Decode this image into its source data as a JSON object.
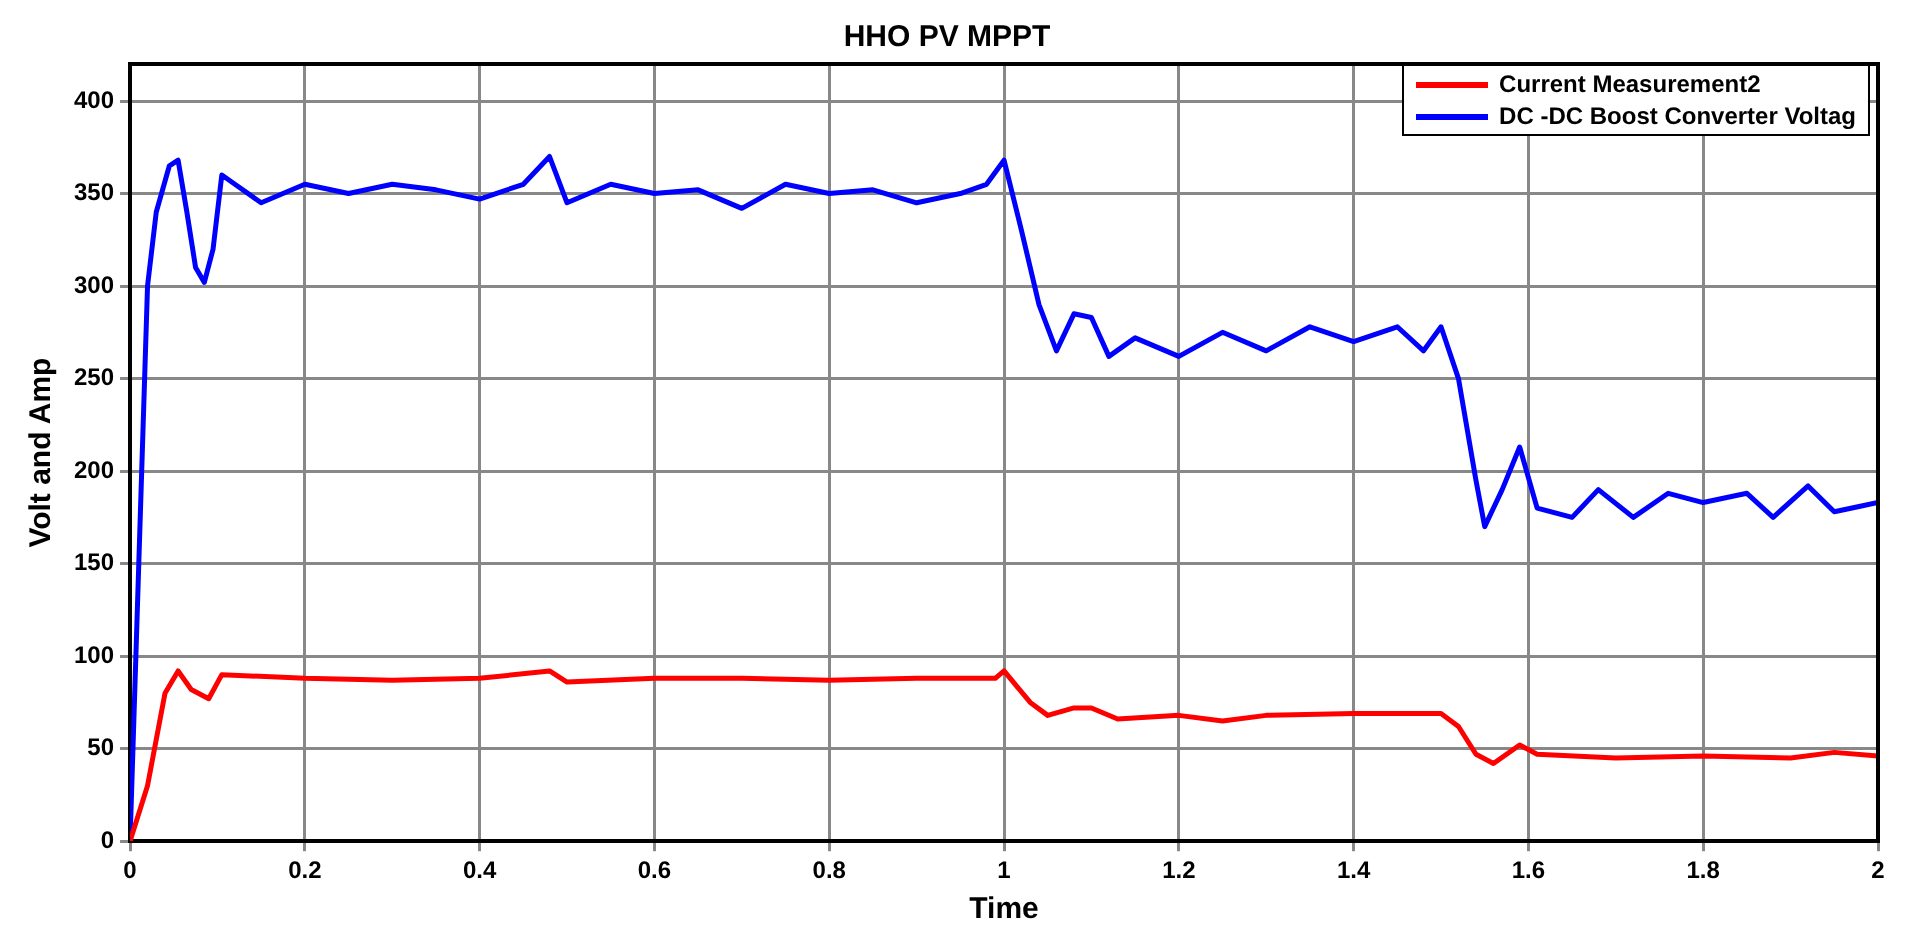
{
  "chart_data": {
    "type": "line",
    "title": "HHO PV MPPT",
    "xlabel": "Time",
    "ylabel": "Volt and Amp",
    "xlim": [
      0,
      2
    ],
    "xticks": [
      0,
      0.2,
      0.4,
      0.6,
      0.8,
      1,
      1.2,
      1.4,
      1.6,
      1.8,
      2
    ],
    "ylim": [
      0,
      420
    ],
    "yticks": [
      0,
      50,
      100,
      150,
      200,
      250,
      300,
      350,
      400
    ],
    "grid": true,
    "legend": "top right",
    "marker": "none",
    "line_style": "solid",
    "series": [
      {
        "name": "Current Measurement2",
        "color": "#ff0000",
        "x": [
          0,
          0.02,
          0.04,
          0.055,
          0.07,
          0.09,
          0.105,
          0.2,
          0.3,
          0.4,
          0.48,
          0.5,
          0.6,
          0.7,
          0.8,
          0.9,
          0.99,
          1.0,
          1.03,
          1.05,
          1.08,
          1.1,
          1.13,
          1.2,
          1.25,
          1.3,
          1.4,
          1.5,
          1.52,
          1.54,
          1.56,
          1.59,
          1.61,
          1.7,
          1.8,
          1.9,
          1.95,
          2.0
        ],
        "values": [
          0,
          30,
          80,
          92,
          82,
          77,
          90,
          88,
          87,
          88,
          92,
          86,
          88,
          88,
          87,
          88,
          88,
          92,
          75,
          68,
          72,
          72,
          66,
          68,
          65,
          68,
          69,
          69,
          62,
          47,
          42,
          52,
          47,
          45,
          46,
          45,
          48,
          46
        ]
      },
      {
        "name": "DC -DC Boost Converter Voltag",
        "color": "#0000ff",
        "x": [
          0,
          0.01,
          0.02,
          0.03,
          0.045,
          0.055,
          0.065,
          0.075,
          0.085,
          0.095,
          0.105,
          0.12,
          0.15,
          0.2,
          0.25,
          0.3,
          0.35,
          0.4,
          0.45,
          0.48,
          0.5,
          0.55,
          0.6,
          0.65,
          0.7,
          0.75,
          0.8,
          0.85,
          0.9,
          0.95,
          0.98,
          1.0,
          1.02,
          1.04,
          1.06,
          1.08,
          1.1,
          1.12,
          1.15,
          1.2,
          1.25,
          1.3,
          1.35,
          1.4,
          1.45,
          1.48,
          1.5,
          1.52,
          1.54,
          1.55,
          1.57,
          1.59,
          1.61,
          1.65,
          1.68,
          1.72,
          1.76,
          1.8,
          1.85,
          1.88,
          1.92,
          1.95,
          2.0
        ],
        "values": [
          0,
          150,
          300,
          340,
          365,
          368,
          340,
          310,
          302,
          320,
          360,
          355,
          345,
          355,
          350,
          355,
          352,
          347,
          355,
          370,
          345,
          355,
          350,
          352,
          342,
          355,
          350,
          352,
          345,
          350,
          355,
          368,
          330,
          290,
          265,
          285,
          283,
          262,
          272,
          262,
          275,
          265,
          278,
          270,
          278,
          265,
          278,
          250,
          195,
          170,
          190,
          213,
          180,
          175,
          190,
          175,
          188,
          183,
          188,
          175,
          192,
          178,
          183
        ]
      }
    ]
  }
}
